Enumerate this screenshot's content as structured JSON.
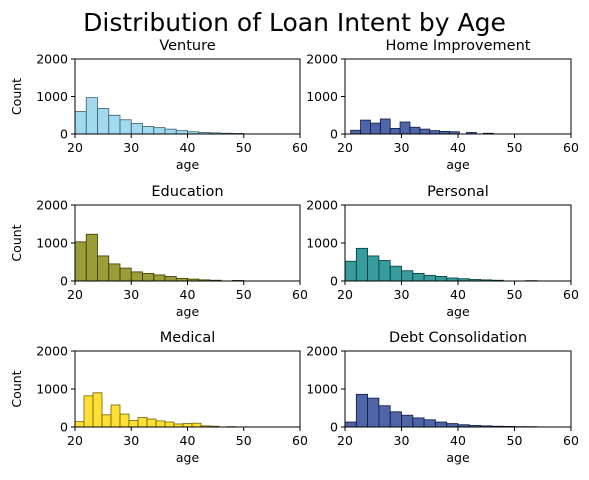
{
  "figure_title": "Distribution of Loan Intent by Age",
  "chart_data": [
    {
      "type": "bar",
      "title": "Venture",
      "xlabel": "age",
      "ylabel": "Count",
      "xlim": [
        20,
        60
      ],
      "ylim": [
        0,
        2000
      ],
      "x_ticks": [
        20,
        30,
        40,
        50,
        60
      ],
      "y_ticks": [
        0,
        1000,
        2000
      ],
      "bin_width": 2,
      "bins_start": [
        20,
        22,
        24,
        26,
        28,
        30,
        32,
        34,
        36,
        38,
        40,
        42,
        44,
        46,
        48
      ],
      "values": [
        600,
        970,
        680,
        500,
        380,
        280,
        200,
        170,
        130,
        90,
        60,
        40,
        30,
        20,
        15
      ],
      "color": "#87CEEB"
    },
    {
      "type": "bar",
      "title": "Home Improvement",
      "xlabel": "age",
      "ylabel": "",
      "xlim": [
        20,
        60
      ],
      "ylim": [
        0,
        2000
      ],
      "x_ticks": [
        20,
        30,
        40,
        50,
        60
      ],
      "y_ticks": [
        0,
        1000,
        2000
      ],
      "bin_width": 1.75,
      "bins_start": [
        21,
        22.75,
        24.5,
        26.25,
        28,
        29.75,
        31.5,
        33.25,
        35,
        36.75,
        38.5,
        41.5,
        44.5
      ],
      "values": [
        100,
        370,
        290,
        400,
        150,
        320,
        180,
        130,
        90,
        70,
        60,
        40,
        20
      ],
      "color": "#1F3A8F"
    },
    {
      "type": "bar",
      "title": "Education",
      "xlabel": "age",
      "ylabel": "Count",
      "xlim": [
        20,
        60
      ],
      "ylim": [
        0,
        2000
      ],
      "x_ticks": [
        20,
        30,
        40,
        50,
        60
      ],
      "y_ticks": [
        0,
        1000,
        2000
      ],
      "bin_width": 2,
      "bins_start": [
        20,
        22,
        24,
        26,
        28,
        30,
        32,
        34,
        36,
        38,
        40,
        42,
        44,
        48
      ],
      "values": [
        1030,
        1230,
        660,
        450,
        340,
        240,
        200,
        160,
        120,
        70,
        50,
        30,
        20,
        15
      ],
      "color": "#808000"
    },
    {
      "type": "bar",
      "title": "Personal",
      "xlabel": "age",
      "ylabel": "",
      "xlim": [
        20,
        60
      ],
      "ylim": [
        0,
        2000
      ],
      "x_ticks": [
        20,
        30,
        40,
        50,
        60
      ],
      "y_ticks": [
        0,
        1000,
        2000
      ],
      "bin_width": 2,
      "bins_start": [
        20,
        22,
        24,
        26,
        28,
        30,
        32,
        34,
        36,
        38,
        40,
        42,
        44,
        46,
        52
      ],
      "values": [
        520,
        860,
        660,
        540,
        390,
        270,
        200,
        150,
        120,
        80,
        60,
        40,
        30,
        20,
        10
      ],
      "color": "#008080"
    },
    {
      "type": "bar",
      "title": "Medical",
      "xlabel": "age",
      "ylabel": "Count",
      "xlim": [
        20,
        60
      ],
      "ylim": [
        0,
        2000
      ],
      "x_ticks": [
        20,
        30,
        40,
        50,
        60
      ],
      "y_ticks": [
        0,
        1000,
        2000
      ],
      "bin_width": 1.6,
      "bins_start": [
        20,
        21.6,
        23.2,
        24.8,
        26.4,
        28,
        29.6,
        31.2,
        32.8,
        34.4,
        36,
        37.6,
        39.2,
        40.8,
        42.4,
        44,
        47
      ],
      "values": [
        140,
        820,
        900,
        320,
        580,
        340,
        170,
        250,
        210,
        160,
        130,
        80,
        90,
        100,
        30,
        20,
        10
      ],
      "color": "#FFD700"
    },
    {
      "type": "bar",
      "title": "Debt Consolidation",
      "xlabel": "age",
      "ylabel": "",
      "xlim": [
        20,
        60
      ],
      "ylim": [
        0,
        2000
      ],
      "x_ticks": [
        20,
        30,
        40,
        50,
        60
      ],
      "y_ticks": [
        0,
        1000,
        2000
      ],
      "bin_width": 2,
      "bins_start": [
        20,
        22,
        24,
        26,
        28,
        30,
        32,
        34,
        36,
        38,
        40,
        42,
        44,
        46,
        48,
        50,
        52
      ],
      "values": [
        130,
        860,
        760,
        560,
        400,
        310,
        240,
        190,
        130,
        90,
        60,
        40,
        30,
        20,
        15,
        10,
        8
      ],
      "color": "#1F3A8F"
    }
  ]
}
